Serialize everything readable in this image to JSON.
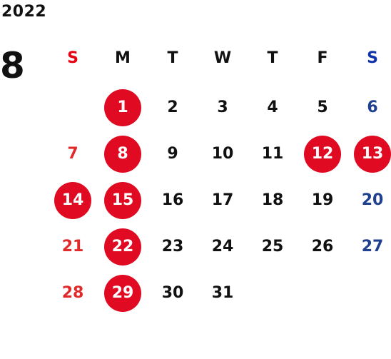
{
  "calendar": {
    "year": "2022",
    "month": "8",
    "weekdays": [
      {
        "label": "S",
        "kind": "sun"
      },
      {
        "label": "M",
        "kind": "weekday"
      },
      {
        "label": "T",
        "kind": "weekday"
      },
      {
        "label": "W",
        "kind": "weekday"
      },
      {
        "label": "T",
        "kind": "weekday"
      },
      {
        "label": "F",
        "kind": "weekday"
      },
      {
        "label": "S",
        "kind": "sat"
      }
    ],
    "first_weekday_index": 1,
    "days_in_month": 31,
    "highlighted_days": [
      1,
      8,
      12,
      13,
      14,
      15,
      22,
      29
    ],
    "colors": {
      "sunday": "#e02a2a",
      "saturday": "#1f3f8f",
      "weekday": "#111111",
      "highlight_circle": "#e00a22",
      "highlight_text": "#ffffff"
    }
  }
}
